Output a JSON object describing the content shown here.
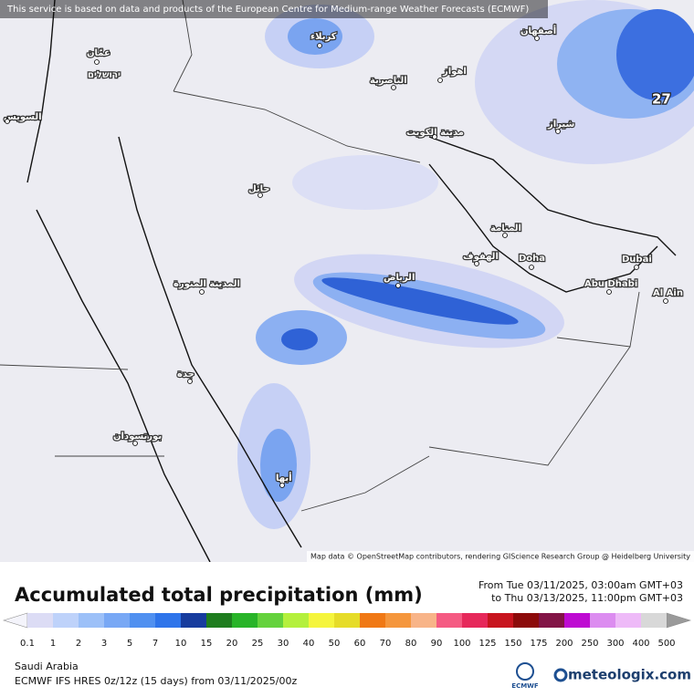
{
  "banner": "This service is based on data and products of the European Centre for Medium-range Weather Forecasts (ECMWF)",
  "map": {
    "cities": [
      "عمّان",
      "ירושלים",
      "السويس",
      "كربلاء",
      "الناصرية",
      "اهواز",
      "أصفهان",
      "شيراز",
      "مدينة الكويت",
      "حائل",
      "المنامة",
      "الهفوف",
      "Doha",
      "الرياض",
      "Dubai",
      "Abu Dhabi",
      "Al Ain",
      "المدينة المنورة",
      "جدة",
      "بورتسودان",
      "أبها"
    ],
    "max_value": 27,
    "attribution": "Map data © OpenStreetMap contributors, rendering GIScience Research Group @ Heidelberg University"
  },
  "legend": {
    "title": "Accumulated total precipitation (mm)",
    "valid_from": "From Tue 03/11/2025, 03:00am GMT+03",
    "valid_to": "to Thu 03/13/2025, 11:00pm GMT+03",
    "levels": [
      0.1,
      1,
      2,
      3,
      5,
      7,
      10,
      15,
      20,
      25,
      30,
      40,
      50,
      60,
      70,
      80,
      90,
      100,
      125,
      150,
      175,
      200,
      250,
      300,
      400,
      500
    ],
    "colors": [
      "#dcdcf5",
      "#bed2fa",
      "#9cc0f8",
      "#78a8f5",
      "#5090f0",
      "#2e74ea",
      "#173c9e",
      "#1e7d1e",
      "#28b428",
      "#64d23c",
      "#b4f03c",
      "#f5f53c",
      "#e6dc28",
      "#f07814",
      "#f5963c",
      "#f8b488",
      "#f55a82",
      "#e6285a",
      "#c8141e",
      "#8c0a0a",
      "#821446",
      "#be0ad2",
      "#dc8cf0",
      "#eebaf8",
      "#d8d8d8"
    ]
  },
  "footer": {
    "region": "Saudi Arabia",
    "model": "ECMWF IFS HRES 0z/12z (15 days) from 03/11/2025/00z",
    "logo_left": "ECMWF",
    "logo_right": "meteologix.com"
  }
}
